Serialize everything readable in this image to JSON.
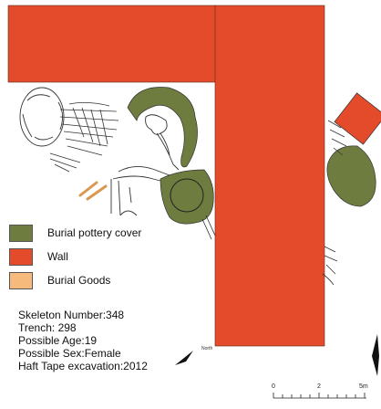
{
  "colors": {
    "wall": "#e34b2b",
    "pottery": "#6e7d3f",
    "goods": "#f6bb7c",
    "outline": "#333333"
  },
  "legend": [
    {
      "label": "Burial pottery cover",
      "color": "#6e7d3f"
    },
    {
      "label": "Wall",
      "color": "#e34b2b"
    },
    {
      "label": "Burial Goods",
      "color": "#f6bb7c"
    }
  ],
  "info": {
    "skeleton_number": "Skeleton Number:348",
    "trench": "Trench: 298",
    "age": "Possible Age:19",
    "sex": "Possible Sex:Female",
    "excavation": "Haft Tape excavation:2012"
  },
  "north": {
    "label": "North",
    "icon": "north-arrow-icon"
  },
  "scale": {
    "labels": [
      "0",
      "2",
      "5m"
    ]
  }
}
